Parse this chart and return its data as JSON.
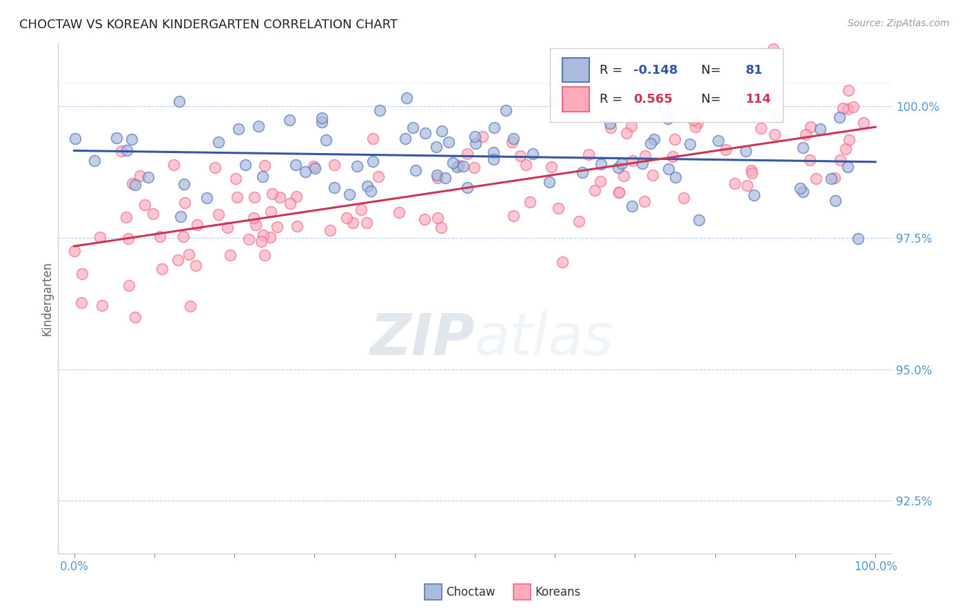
{
  "title": "CHOCTAW VS KOREAN KINDERGARTEN CORRELATION CHART",
  "source_text": "Source: ZipAtlas.com",
  "ylabel": "Kindergarten",
  "watermark": "ZIPatlas",
  "xlim": [
    -2,
    102
  ],
  "ylim": [
    91.5,
    101.2
  ],
  "yticks": [
    92.5,
    95.0,
    97.5,
    100.0
  ],
  "blue_R": -0.148,
  "blue_N": 81,
  "pink_R": 0.565,
  "pink_N": 114,
  "blue_color": "#AABBDD",
  "blue_edge_color": "#5577BB",
  "pink_color": "#FFAABB",
  "pink_edge_color": "#EE6688",
  "blue_line_color": "#3355AA",
  "pink_line_color": "#CC3355",
  "axis_color": "#5599CC",
  "grid_color": "#AACCEE",
  "title_color": "#222222",
  "source_color": "#999999",
  "legend_label_blue": "Choctaw",
  "legend_label_pink": "Koreans",
  "blue_trend_start_y": 99.35,
  "blue_trend_end_y": 98.85,
  "pink_trend_start_y": 97.4,
  "pink_trend_end_y": 100.2
}
